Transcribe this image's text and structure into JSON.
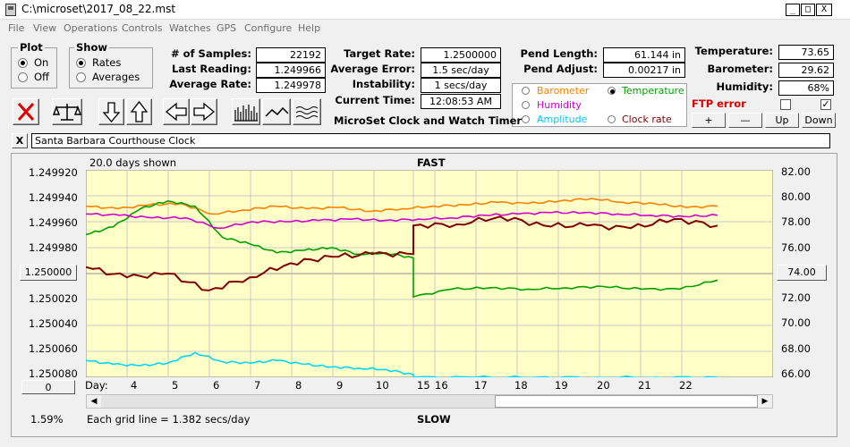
{
  "window": {
    "title": "C:\\microset\\2017_08_22.mst",
    "controls": [
      "_",
      "□",
      "X"
    ]
  },
  "menu": [
    "File",
    "View",
    "Operations",
    "Controls",
    "Watches",
    "GPS",
    "Configure",
    "Help"
  ],
  "plot": {
    "label": "Plot",
    "options": [
      {
        "label": "On",
        "selected": true
      },
      {
        "label": "Off",
        "selected": false
      }
    ]
  },
  "show": {
    "label": "Show",
    "options": [
      {
        "label": "Rates",
        "selected": true
      },
      {
        "label": "Averages",
        "selected": false
      }
    ]
  },
  "stats": {
    "samples_label": "# of Samples:",
    "samples": "22192",
    "last_label": "Last Reading:",
    "last": "1.249966",
    "avg_label": "Average Rate:",
    "avg": "1.249978",
    "target_label": "Target Rate:",
    "target": "1.2500000",
    "error_label": "Average Error:",
    "error": "1.5 sec/day",
    "instab_label": "Instability:",
    "instab": "1 secs/day",
    "time_label": "Current Time:",
    "time": "12:08:53 AM",
    "pendlen_label": "Pend Length:",
    "pendlen": "61.144 in",
    "pendadj_label": "Pend Adjust:",
    "pendadj": "0.00217 in",
    "temp_label": "Temperature:",
    "temp": "73.65",
    "baro_label": "Barometer:",
    "baro": "29.62",
    "hum_label": "Humidity:",
    "hum": "68%"
  },
  "app_name": "MicroSet Clock and Watch Timer",
  "legend": [
    {
      "label": "Barometer",
      "color": "#ff8000",
      "selected": false
    },
    {
      "label": "Temperature",
      "color": "#00a000",
      "selected": true
    },
    {
      "label": "Humidity",
      "color": "#d000d0",
      "selected": false
    },
    {
      "label": "Amplitude",
      "color": "#00d8ff",
      "selected": false
    },
    {
      "label": "Clock rate",
      "color": "#800000",
      "selected": false
    }
  ],
  "ftp": {
    "label": "FTP error",
    "checkbox1": false,
    "checkbox2": true
  },
  "adjust_buttons": [
    "+",
    "—",
    "Up",
    "Down"
  ],
  "watch_name": "Santa Barbara Courthouse Clock",
  "close_x": "X",
  "graph": {
    "days_shown": "20.0 days shown",
    "top_label": "FAST",
    "bottom_label": "SLOW",
    "center_left": "1.250000",
    "center_right": "74.00",
    "left_zero": "0",
    "day_label": "Day:",
    "grid_info": "Each grid line = 1.382 secs/day",
    "percent": "1.59%"
  },
  "chart_data": {
    "type": "line",
    "xlabel": "Day:",
    "x_ticks": [
      "4",
      "5",
      "6",
      "7",
      "8",
      "9",
      "10",
      "15",
      "16",
      "17",
      "18",
      "19",
      "20",
      "21",
      "22"
    ],
    "left_axis": {
      "ticks": [
        "1.249920",
        "1.249940",
        "1.249960",
        "1.249980",
        "1.250000",
        "1.250020",
        "1.250040",
        "1.250060",
        "1.250080"
      ],
      "inverted": true
    },
    "right_axis": {
      "ticks": [
        "82.00",
        "80.00",
        "78.00",
        "76.00",
        "74.00",
        "72.00",
        "70.00",
        "68.00",
        "66.00"
      ]
    },
    "series": [
      {
        "name": "Barometer",
        "color": "#ff8000",
        "values": [
          79.2,
          79.0,
          79.3,
          79.4,
          78.6,
          78.9,
          79.2,
          79.0,
          79.1,
          78.8,
          79.0,
          79.2,
          79.3,
          79.5,
          79.4,
          79.6,
          79.8,
          79.5,
          79.4,
          79.1,
          79.2
        ]
      },
      {
        "name": "Temperature",
        "color": "#00a000",
        "values": [
          77.0,
          77.6,
          79.0,
          79.6,
          79.2,
          76.8,
          76.3,
          75.6,
          75.8,
          76.0,
          75.5,
          75.6,
          75.2,
          72.2,
          72.8,
          72.9,
          72.8,
          72.9,
          73.0,
          72.8,
          72.8,
          73.5
        ]
      },
      {
        "name": "Humidity",
        "color": "#d000d0",
        "values": [
          78.6,
          78.5,
          78.3,
          78.3,
          77.5,
          78.0,
          78.0,
          78.1,
          78.2,
          78.1,
          78.2,
          78.3,
          78.5,
          78.6,
          78.7,
          78.7,
          78.6,
          78.5,
          78.4,
          78.5
        ]
      },
      {
        "name": "Amplitude",
        "color": "#00d8ff",
        "values": [
          67.3,
          67.0,
          66.9,
          67.1,
          67.9,
          67.2,
          67.1,
          67.3,
          67.0,
          66.8,
          66.7,
          66.6,
          66.2,
          66.0,
          66.0,
          66.0,
          66.0,
          66.0,
          66.0
        ]
      },
      {
        "name": "Clock rate",
        "color": "#800000",
        "values": [
          1.249995,
          1.250003,
          1.25,
          1.250013,
          1.250003,
          1.249992,
          1.249987,
          1.249985,
          1.249985,
          1.249963,
          1.249962,
          1.249956,
          1.249963,
          1.249963,
          1.249965,
          1.249958,
          1.249963
        ]
      }
    ]
  }
}
